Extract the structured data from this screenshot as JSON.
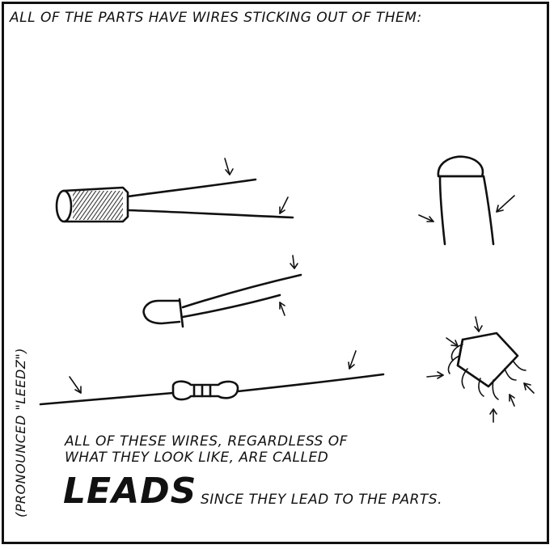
{
  "panel": {
    "top_caption": "ALL OF THE PARTS HAVE WIRES STICKING OUT OF THEM:",
    "side_note": "(PRONOUNCED \"LEEDZ\")",
    "bottom_caption": {
      "line1": "ALL OF THESE WIRES, REGARDLESS OF",
      "line2": "WHAT THEY LOOK LIKE, ARE CALLED",
      "emphasis": "LEADS",
      "rest": "SINCE THEY LEAD TO THE PARTS."
    }
  },
  "colors": {
    "ink": "#111111",
    "paper": "#ffffff"
  }
}
